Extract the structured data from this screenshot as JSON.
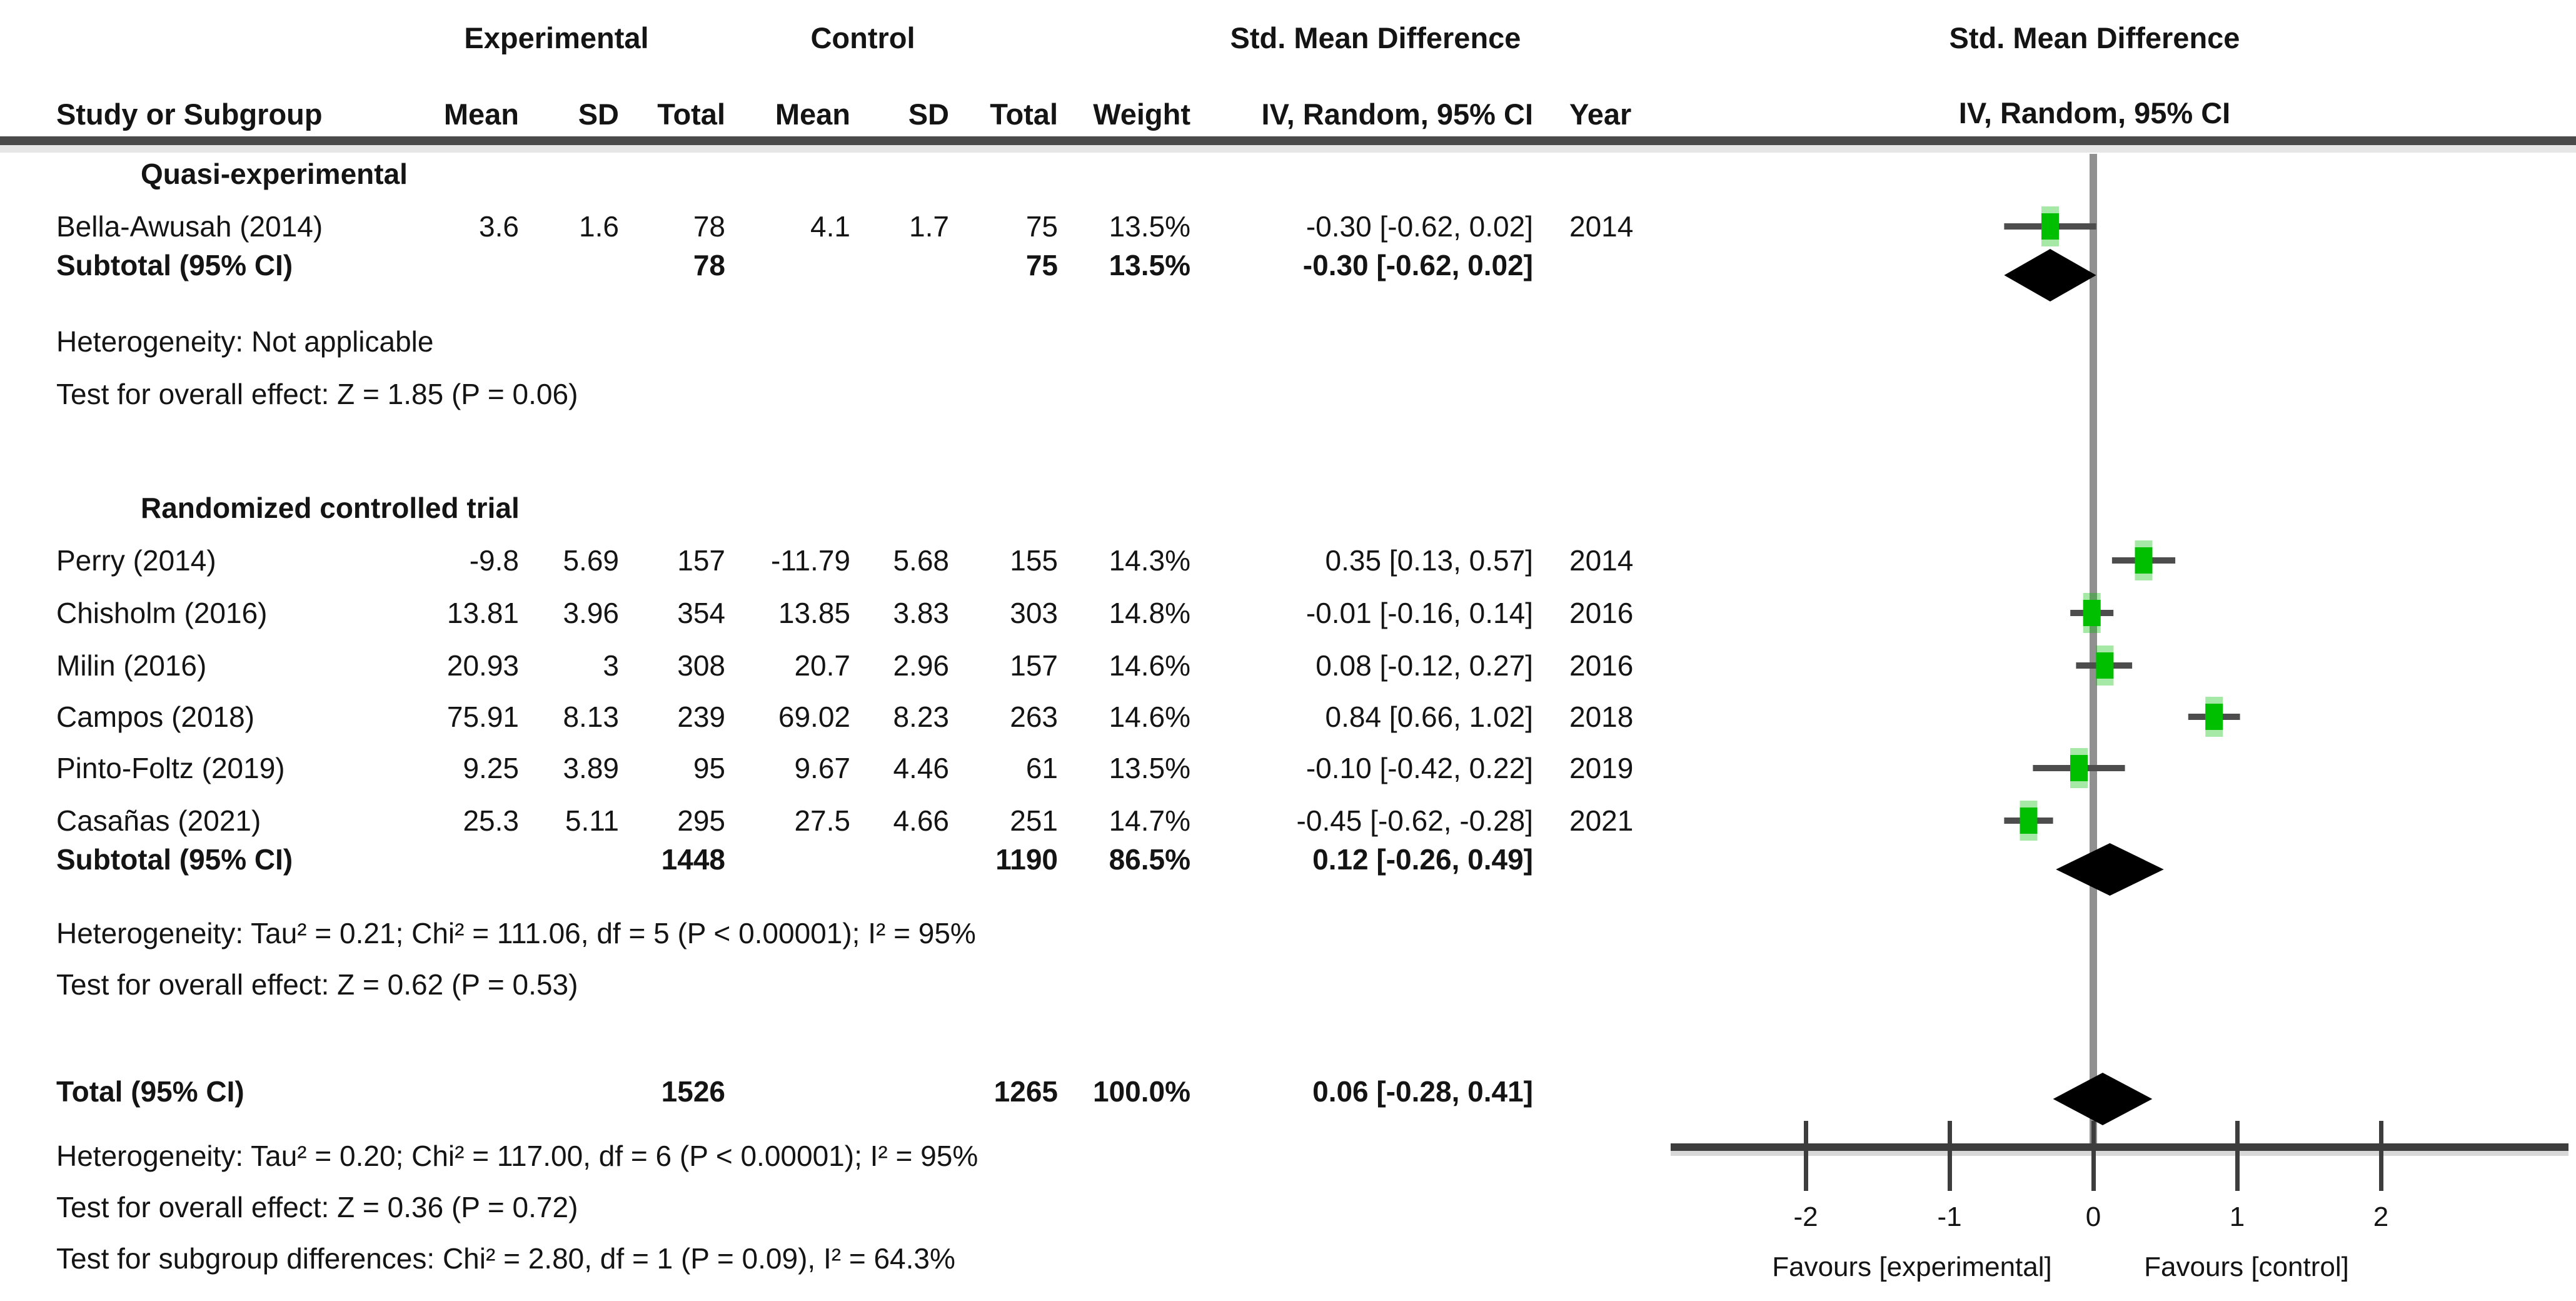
{
  "header": {
    "group_experimental": "Experimental",
    "group_control": "Control",
    "group_smd_left": "Std. Mean Difference",
    "col_study": "Study or Subgroup",
    "col_mean": "Mean",
    "col_sd": "SD",
    "col_total": "Total",
    "col_weight": "Weight",
    "col_iv": "IV, Random, 95% CI",
    "col_year": "Year",
    "plot_title_line1": "Std. Mean Difference",
    "plot_title_line2": "IV, Random, 95% CI"
  },
  "table": {
    "sections": [
      {
        "label": "Quasi-experimental",
        "studies": [
          {
            "study": "Bella-Awusah (2014)",
            "mean_e": "3.6",
            "sd_e": "1.6",
            "total_e": "78",
            "mean_c": "4.1",
            "sd_c": "1.7",
            "total_c": "75",
            "weight": "13.5%",
            "smd_ci": "-0.30 [-0.62, 0.02]",
            "year": "2014"
          }
        ],
        "subtotal": {
          "label": "Subtotal (95% CI)",
          "total_e": "78",
          "total_c": "75",
          "weight": "13.5%",
          "smd_ci": "-0.30 [-0.62, 0.02]"
        },
        "heterogeneity": "Heterogeneity: Not applicable",
        "overall_effect": "Test for overall effect: Z = 1.85 (P = 0.06)"
      },
      {
        "label": "Randomized controlled trial",
        "studies": [
          {
            "study": "Perry (2014)",
            "mean_e": "-9.8",
            "sd_e": "5.69",
            "total_e": "157",
            "mean_c": "-11.79",
            "sd_c": "5.68",
            "total_c": "155",
            "weight": "14.3%",
            "smd_ci": "0.35 [0.13, 0.57]",
            "year": "2014"
          },
          {
            "study": "Chisholm (2016)",
            "mean_e": "13.81",
            "sd_e": "3.96",
            "total_e": "354",
            "mean_c": "13.85",
            "sd_c": "3.83",
            "total_c": "303",
            "weight": "14.8%",
            "smd_ci": "-0.01 [-0.16, 0.14]",
            "year": "2016"
          },
          {
            "study": "Milin (2016)",
            "mean_e": "20.93",
            "sd_e": "3",
            "total_e": "308",
            "mean_c": "20.7",
            "sd_c": "2.96",
            "total_c": "157",
            "weight": "14.6%",
            "smd_ci": "0.08 [-0.12, 0.27]",
            "year": "2016"
          },
          {
            "study": "Campos (2018)",
            "mean_e": "75.91",
            "sd_e": "8.13",
            "total_e": "239",
            "mean_c": "69.02",
            "sd_c": "8.23",
            "total_c": "263",
            "weight": "14.6%",
            "smd_ci": "0.84 [0.66, 1.02]",
            "year": "2018"
          },
          {
            "study": "Pinto-Foltz (2019)",
            "mean_e": "9.25",
            "sd_e": "3.89",
            "total_e": "95",
            "mean_c": "9.67",
            "sd_c": "4.46",
            "total_c": "61",
            "weight": "13.5%",
            "smd_ci": "-0.10 [-0.42, 0.22]",
            "year": "2019"
          },
          {
            "study": "Casañas (2021)",
            "mean_e": "25.3",
            "sd_e": "5.11",
            "total_e": "295",
            "mean_c": "27.5",
            "sd_c": "4.66",
            "total_c": "251",
            "weight": "14.7%",
            "smd_ci": "-0.45 [-0.62, -0.28]",
            "year": "2021"
          }
        ],
        "subtotal": {
          "label": "Subtotal (95% CI)",
          "total_e": "1448",
          "total_c": "1190",
          "weight": "86.5%",
          "smd_ci": "0.12 [-0.26, 0.49]"
        },
        "heterogeneity": "Heterogeneity: Tau² = 0.21; Chi² = 111.06, df = 5 (P < 0.00001); I² = 95%",
        "overall_effect": "Test for overall effect: Z = 0.62 (P = 0.53)"
      }
    ],
    "total_row": {
      "label": "Total (95% CI)",
      "total_e": "1526",
      "total_c": "1265",
      "weight": "100.0%",
      "smd_ci": "0.06 [-0.28, 0.41]"
    },
    "footer": {
      "heterogeneity": "Heterogeneity: Tau² = 0.20; Chi² = 117.00, df = 6 (P < 0.00001); I² = 95%",
      "overall_effect": "Test for overall effect: Z = 0.36 (P = 0.72)",
      "subgroup_differences": "Test for subgroup differences: Chi² = 2.80, df = 1 (P = 0.09), I² = 64.3%"
    }
  },
  "chart_data": {
    "type": "scatter",
    "variant": "forest_plot_meta_analysis",
    "title": "Std. Mean Difference",
    "subtitle": "IV, Random, 95% CI",
    "xlim": [
      -2,
      2
    ],
    "x_ticks": [
      -2,
      -1,
      0,
      1,
      2
    ],
    "x_label_left": "Favours [experimental]",
    "x_label_right": "Favours [control]",
    "marker_color": "#00BF00",
    "ci_line_color": "#4d4d4d",
    "diamond_color": "#000000",
    "zero_line_color": "#909090",
    "subgroups": [
      {
        "name": "Quasi-experimental",
        "studies": [
          {
            "label": "Bella-Awusah (2014)",
            "effect": -0.3,
            "ci": [
              -0.62,
              0.02
            ],
            "weight_pct": 13.5,
            "year": "2014"
          }
        ],
        "subtotal": {
          "effect": -0.3,
          "ci": [
            -0.62,
            0.02
          ],
          "weight_pct": 13.5
        }
      },
      {
        "name": "Randomized controlled trial",
        "studies": [
          {
            "label": "Perry (2014)",
            "effect": 0.35,
            "ci": [
              0.13,
              0.57
            ],
            "weight_pct": 14.3,
            "year": "2014"
          },
          {
            "label": "Chisholm (2016)",
            "effect": -0.01,
            "ci": [
              -0.16,
              0.14
            ],
            "weight_pct": 14.8,
            "year": "2016"
          },
          {
            "label": "Milin (2016)",
            "effect": 0.08,
            "ci": [
              -0.12,
              0.27
            ],
            "weight_pct": 14.6,
            "year": "2016"
          },
          {
            "label": "Campos (2018)",
            "effect": 0.84,
            "ci": [
              0.66,
              1.02
            ],
            "weight_pct": 14.6,
            "year": "2018"
          },
          {
            "label": "Pinto-Foltz (2019)",
            "effect": -0.1,
            "ci": [
              -0.42,
              0.22
            ],
            "weight_pct": 13.5,
            "year": "2019"
          },
          {
            "label": "Casañas (2021)",
            "effect": -0.45,
            "ci": [
              -0.62,
              -0.28
            ],
            "weight_pct": 14.7,
            "year": "2021"
          }
        ],
        "subtotal": {
          "effect": 0.12,
          "ci": [
            -0.26,
            0.49
          ],
          "weight_pct": 86.5
        }
      }
    ],
    "total": {
      "effect": 0.06,
      "ci": [
        -0.28,
        0.41
      ],
      "weight_pct": 100.0
    }
  }
}
